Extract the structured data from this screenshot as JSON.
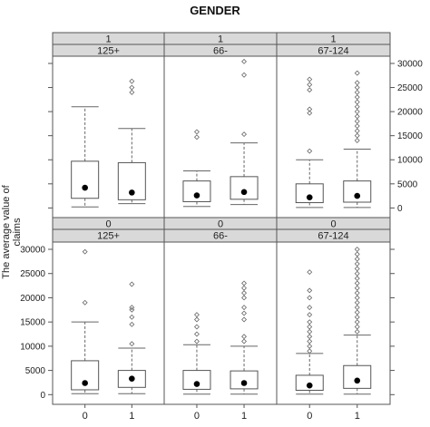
{
  "chart_data": {
    "type": "boxplot",
    "title": "GENDER",
    "ylabel": "The average value of claims",
    "x_categories": [
      "0",
      "1"
    ],
    "ylim": [
      -2000,
      31500
    ],
    "y_ticks": [
      0,
      5000,
      10000,
      15000,
      20000,
      25000,
      30000
    ],
    "y_tick_labels": [
      "0",
      "5000",
      "10000",
      "15000",
      "20000",
      "25000",
      "30000"
    ],
    "grid": false,
    "panels": [
      {
        "row": "top",
        "strip_outer": "1",
        "strip_inner": "125+",
        "y_axis_side": "right",
        "boxes": [
          {
            "x": "0",
            "min": 200,
            "q1": 2000,
            "median": 4200,
            "q3": 9700,
            "max": 21000,
            "outliers": []
          },
          {
            "x": "1",
            "min": 900,
            "q1": 1700,
            "median": 3200,
            "q3": 9400,
            "max": 16500,
            "outliers": [
              24000,
              25000,
              26300
            ]
          }
        ]
      },
      {
        "row": "top",
        "strip_outer": "1",
        "strip_inner": "66-",
        "y_axis_side": "right",
        "boxes": [
          {
            "x": "0",
            "min": 300,
            "q1": 1300,
            "median": 2600,
            "q3": 5600,
            "max": 7700,
            "outliers": [
              14700,
              15800
            ]
          },
          {
            "x": "1",
            "min": 700,
            "q1": 1800,
            "median": 3300,
            "q3": 6500,
            "max": 13500,
            "outliers": [
              15300,
              27600,
              30400
            ]
          }
        ]
      },
      {
        "row": "top",
        "strip_outer": "1",
        "strip_inner": "67-124",
        "y_axis_side": "right",
        "boxes": [
          {
            "x": "0",
            "min": 100,
            "q1": 1100,
            "median": 2200,
            "q3": 5000,
            "max": 10000,
            "outliers": [
              11800,
              19700,
              20500,
              24500,
              25600,
              26700
            ]
          },
          {
            "x": "1",
            "min": 100,
            "q1": 1200,
            "median": 2500,
            "q3": 5600,
            "max": 12200,
            "outliers": [
              14000,
              15000,
              16000,
              17000,
              18000,
              19000,
              20000,
              21000,
              22000,
              23000,
              24000,
              25000,
              26000,
              28000
            ]
          }
        ]
      },
      {
        "row": "bottom",
        "strip_outer": "0",
        "strip_inner": "125+",
        "y_axis_side": "left",
        "boxes": [
          {
            "x": "0",
            "min": 200,
            "q1": 1000,
            "median": 2400,
            "q3": 7000,
            "max": 15000,
            "outliers": [
              19000,
              29500
            ]
          },
          {
            "x": "1",
            "min": 200,
            "q1": 1500,
            "median": 3300,
            "q3": 5000,
            "max": 9600,
            "outliers": [
              10500,
              14500,
              16000,
              17500,
              18000,
              22800
            ]
          }
        ]
      },
      {
        "row": "bottom",
        "strip_outer": "0",
        "strip_inner": "66-",
        "y_axis_side": "left",
        "boxes": [
          {
            "x": "0",
            "min": 100,
            "q1": 1100,
            "median": 2200,
            "q3": 5000,
            "max": 10300,
            "outliers": [
              11000,
              12500,
              14000,
              15500,
              16500
            ]
          },
          {
            "x": "1",
            "min": 100,
            "q1": 1200,
            "median": 2400,
            "q3": 4900,
            "max": 10000,
            "outliers": [
              11000,
              12000,
              15500,
              16800,
              18000,
              20000,
              21000,
              22000,
              23000
            ]
          }
        ]
      },
      {
        "row": "bottom",
        "strip_outer": "0",
        "strip_inner": "67-124",
        "y_axis_side": "left",
        "boxes": [
          {
            "x": "0",
            "min": 100,
            "q1": 900,
            "median": 1900,
            "q3": 4000,
            "max": 8500,
            "outliers": [
              9000,
              10000,
              11000,
              12000,
              13000,
              14000,
              15000,
              16500,
              18000,
              20000,
              21500,
              25300
            ]
          },
          {
            "x": "1",
            "min": 100,
            "q1": 1300,
            "median": 2900,
            "q3": 6000,
            "max": 12300,
            "outliers": [
              13000,
              14000,
              15000,
              16000,
              17000,
              18000,
              19000,
              20000,
              21000,
              22000,
              23000,
              24000,
              25000,
              26000,
              27000,
              28000,
              29000,
              30000
            ]
          }
        ]
      }
    ]
  }
}
